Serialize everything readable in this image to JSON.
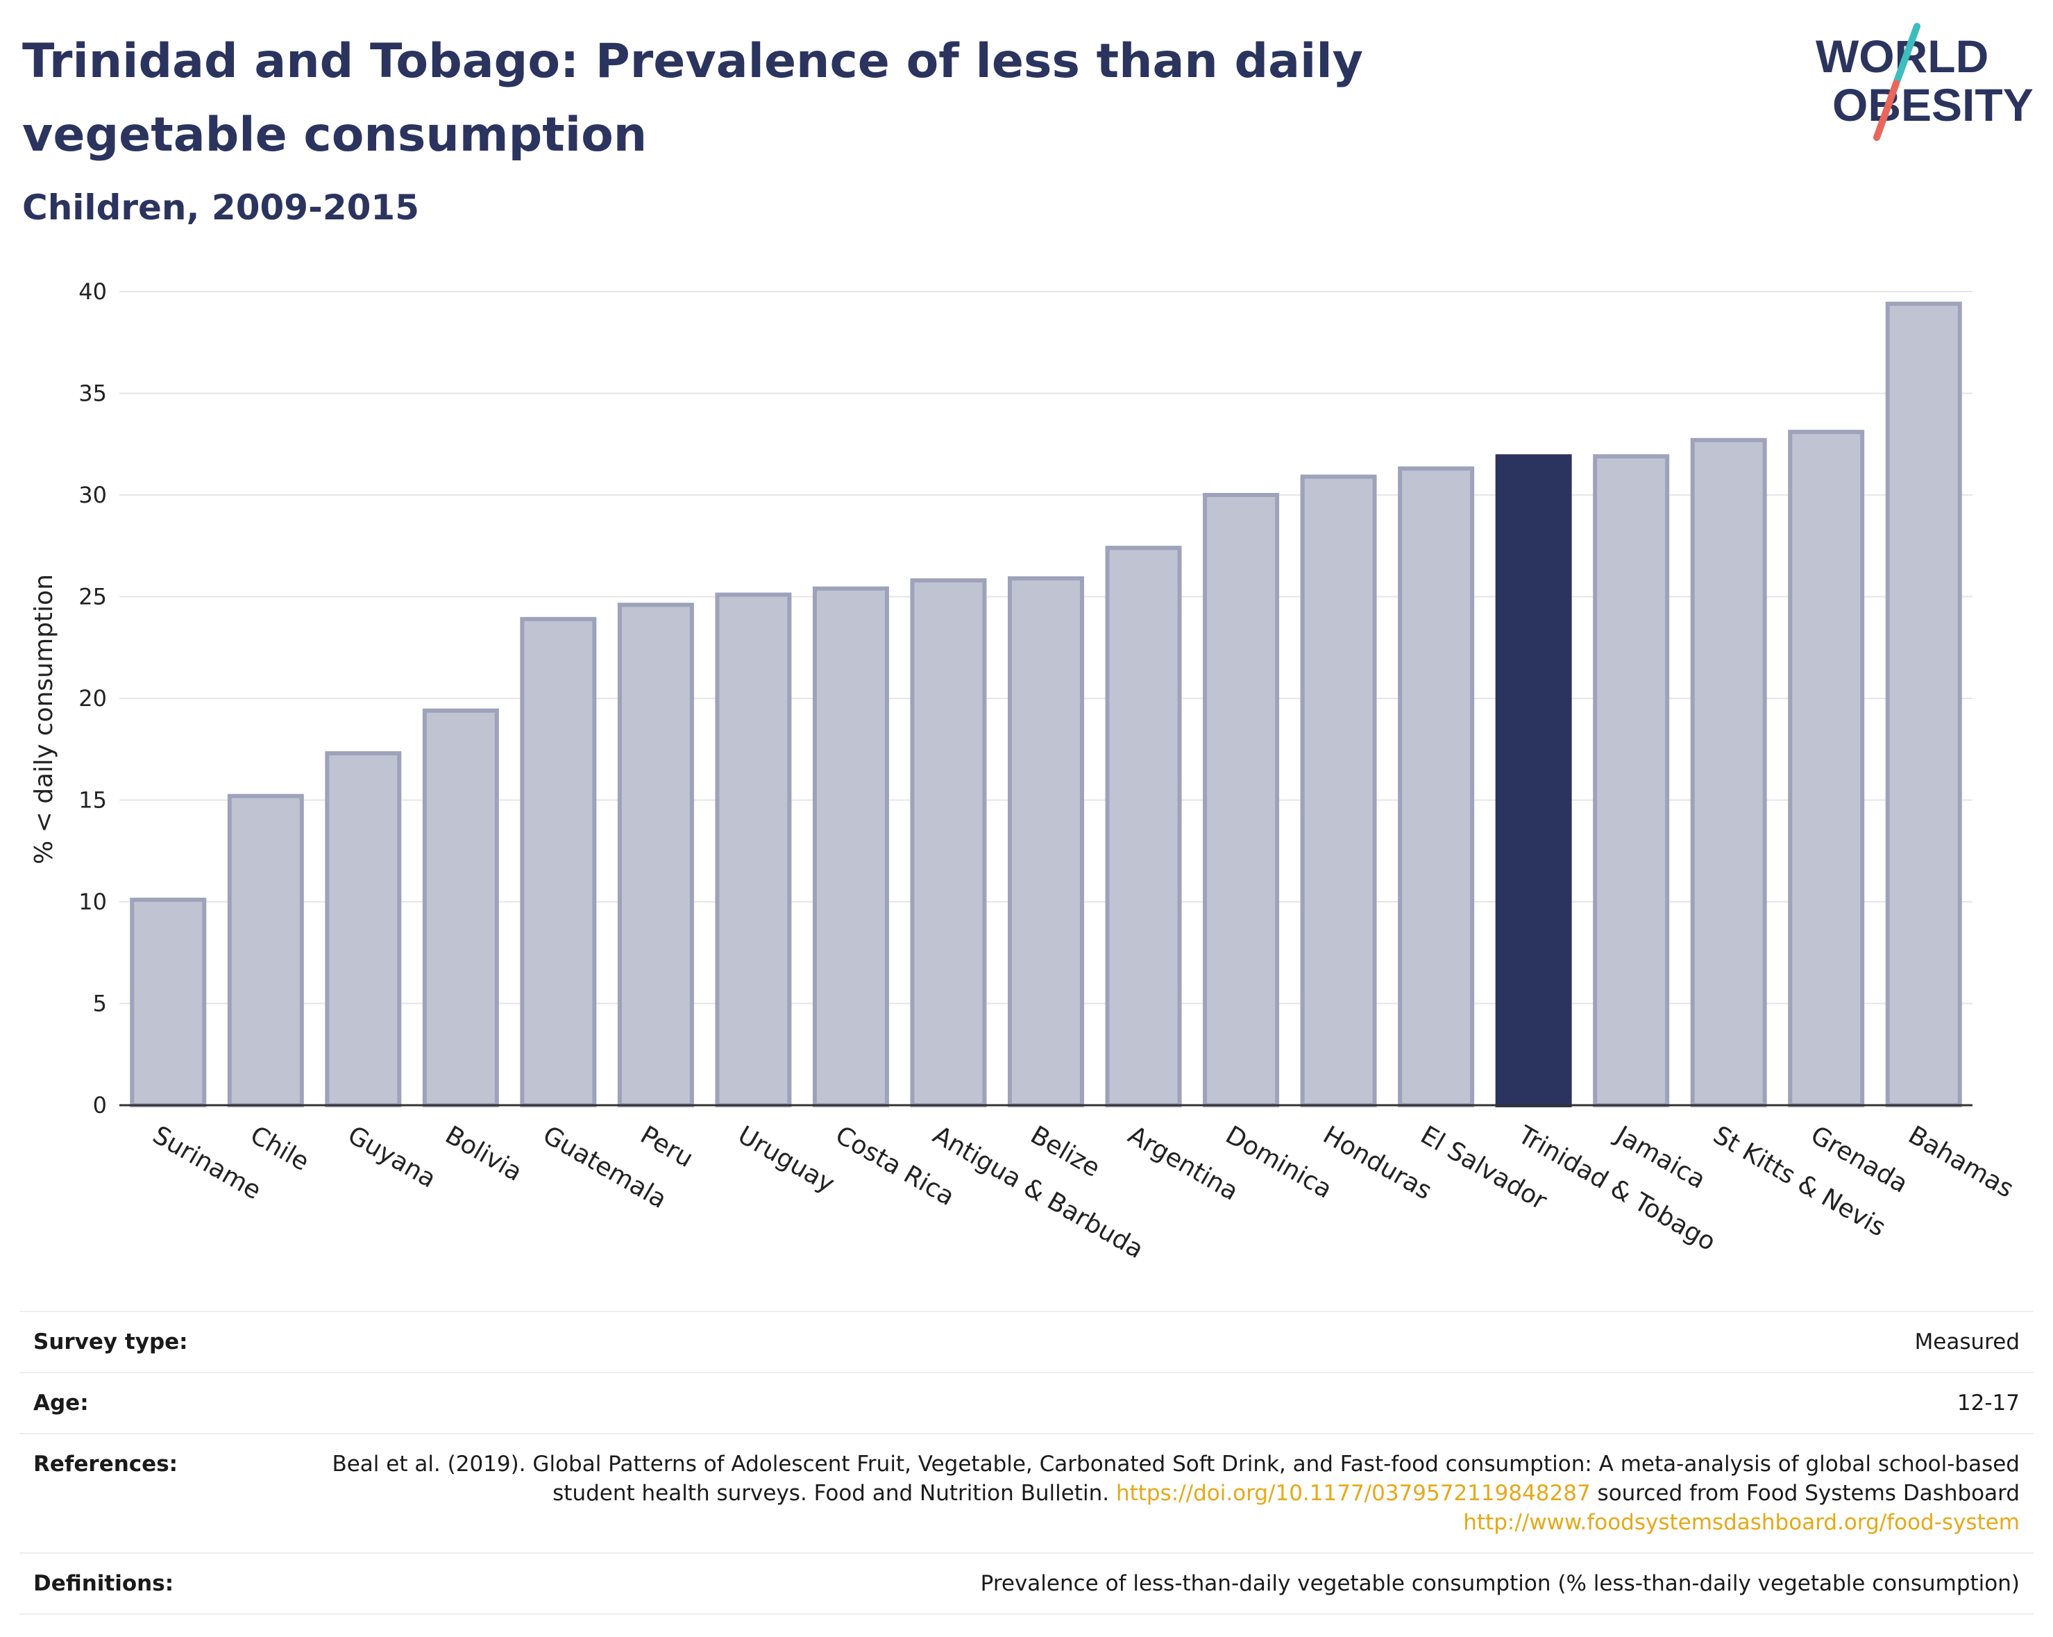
{
  "header": {
    "title": "Trinidad and Tobago: Prevalence of less than daily vegetable consumption",
    "subtitle": "Children, 2009-2015"
  },
  "logo": {
    "line1": "WORLD",
    "line2": "OBESITY",
    "colors": {
      "text": "#2b345e",
      "accent_teal": "#3dbdbd",
      "accent_red": "#e8675a"
    }
  },
  "colors": {
    "bar_default": "#c0c3d1",
    "bar_border": "#9ea2bb",
    "bar_highlight": "#2b345e",
    "grid": "#e6e6e6",
    "axis": "#333333"
  },
  "chart_data": {
    "type": "bar",
    "title": "Trinidad and Tobago: Prevalence of less than daily vegetable consumption",
    "subtitle": "Children, 2009-2015",
    "xlabel": "",
    "ylabel": "% < daily consumption",
    "ylim": [
      0,
      40
    ],
    "yticks": [
      0,
      5,
      10,
      15,
      20,
      25,
      30,
      35,
      40
    ],
    "grid": true,
    "highlight": "Trinidad & Tobago",
    "categories": [
      "Suriname",
      "Chile",
      "Guyana",
      "Bolivia",
      "Guatemala",
      "Peru",
      "Uruguay",
      "Costa Rica",
      "Antigua & Barbuda",
      "Belize",
      "Argentina",
      "Dominica",
      "Honduras",
      "El Salvador",
      "Trinidad & Tobago",
      "Jamaica",
      "St Kitts & Nevis",
      "Grenada",
      "Bahamas"
    ],
    "values": [
      10.1,
      15.2,
      17.3,
      19.4,
      23.9,
      24.6,
      25.1,
      25.4,
      25.8,
      25.9,
      27.4,
      30.0,
      30.9,
      31.3,
      31.9,
      31.9,
      32.7,
      33.1,
      39.4
    ]
  },
  "meta": {
    "survey_type_label": "Survey type:",
    "survey_type_value": "Measured",
    "age_label": "Age:",
    "age_value": "12-17",
    "references_label": "References:",
    "references_text": "Beal et al. (2019). Global Patterns of Adolescent Fruit, Vegetable, Carbonated Soft Drink, and Fast-food consumption: A meta-analysis of global school-based student health surveys. Food and Nutrition Bulletin.",
    "references_doi": "https://doi.org/10.1177/0379572119848287",
    "references_mid": "sourced from Food Systems Dashboard",
    "references_url": "http://www.foodsystemsdashboard.org/food-system",
    "definitions_label": "Definitions:",
    "definitions_value": "Prevalence of less-than-daily vegetable consumption (% less-than-daily vegetable consumption)"
  }
}
